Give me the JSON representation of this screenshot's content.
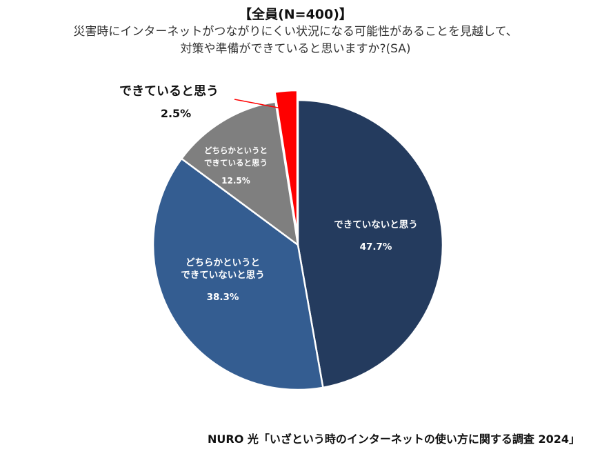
{
  "title": "【全員(N=400)】",
  "question": "災害時にインターネットがつながりにくい状況になる可能性があることを見越して、\n対策や準備ができていると思いますか?(SA)",
  "source": "NURO 光「いざという時のインターネットの使い方に関する調査 2024」",
  "chart_data": {
    "type": "pie",
    "title": "【全員(N=400)】",
    "slices": [
      {
        "label": "できていないと思う",
        "value": 47.7,
        "value_label": "47.7%",
        "color": "#243b5e",
        "text_color": "#ffffff"
      },
      {
        "label": "どちらかというと\nできていないと思う",
        "value": 38.3,
        "value_label": "38.3%",
        "color": "#345d91",
        "text_color": "#ffffff"
      },
      {
        "label": "どちらかというと\nできていると思う",
        "value": 12.5,
        "value_label": "12.5%",
        "color": "#7f7f7f",
        "text_color": "#ffffff"
      },
      {
        "label": "できていると思う",
        "value": 2.5,
        "value_label": "2.5%",
        "color": "#ff0000",
        "text_color": "#111111",
        "callout": true
      }
    ],
    "start": "12 o'clock, clockwise"
  }
}
